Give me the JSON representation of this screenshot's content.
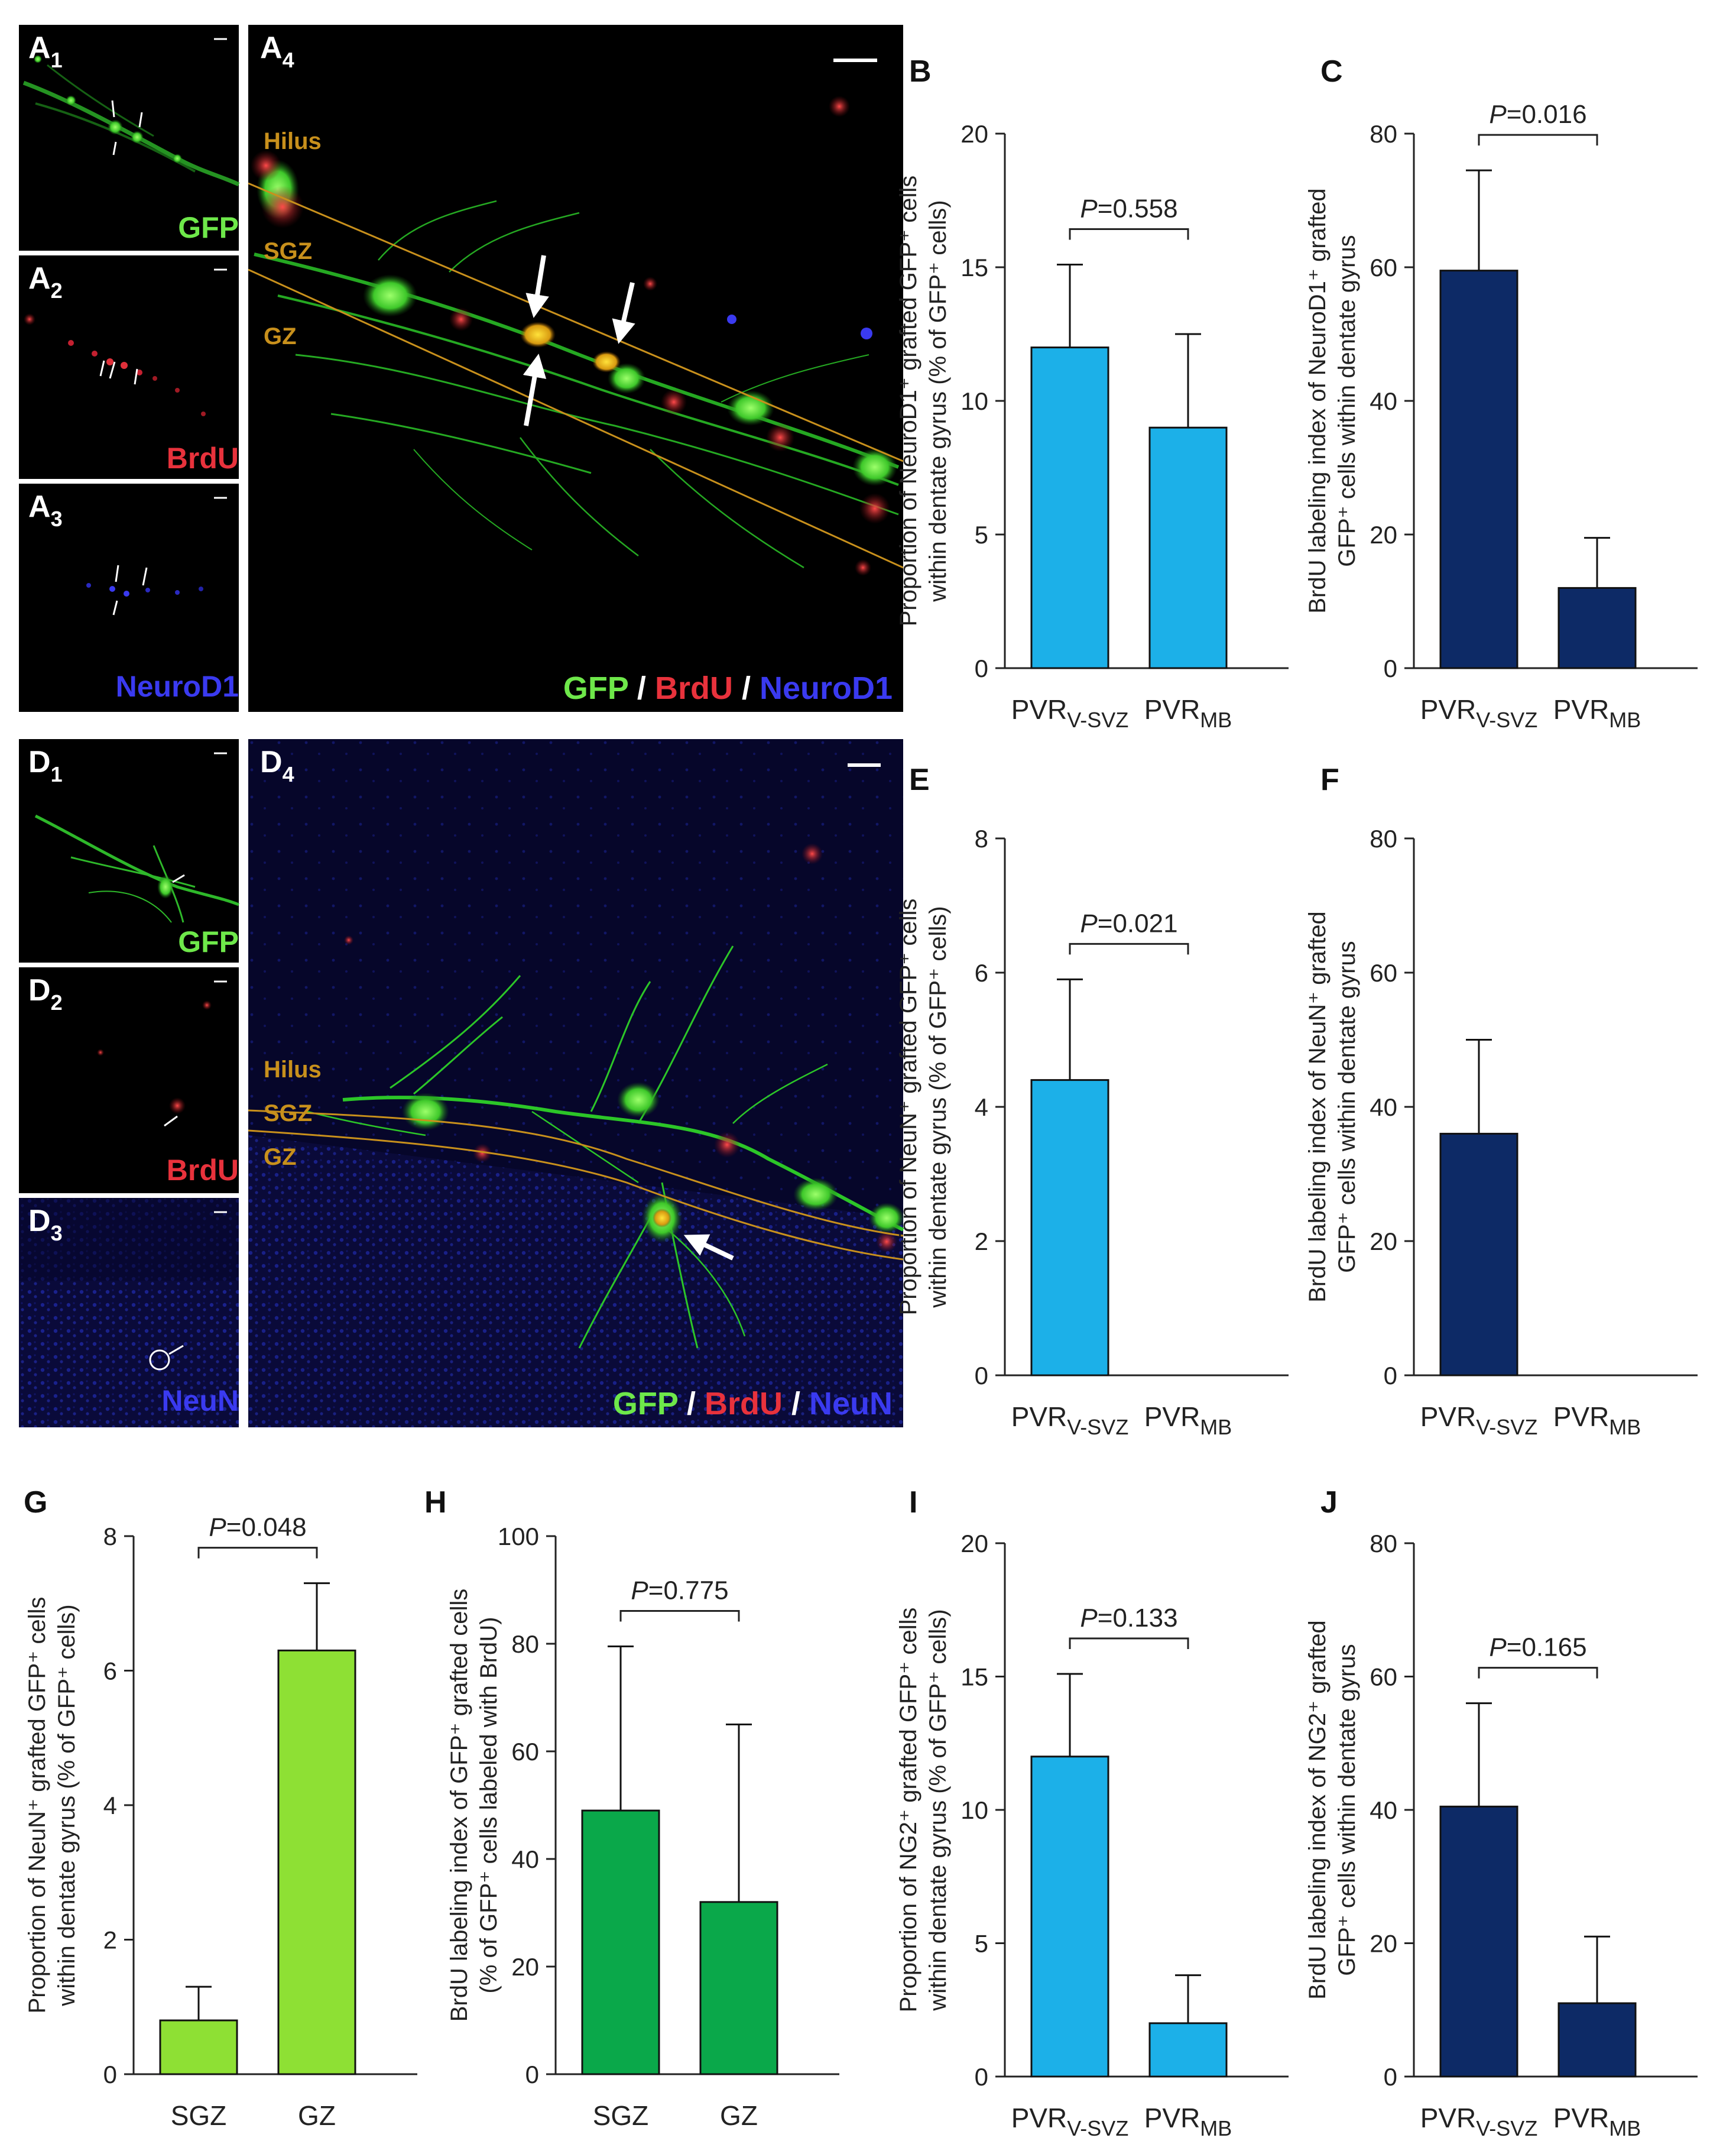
{
  "colors": {
    "light_blue": "#1cb0e8",
    "navy": "#0d2a66",
    "light_green": "#8ee034",
    "green": "#0aa84a",
    "gfp": "#6ee84a",
    "brdu": "#e8323c",
    "marker_blue": "#3a3af0",
    "zone_orange": "#c8901c"
  },
  "micrographs": {
    "top": {
      "small": [
        {
          "panel": "A",
          "sub": "1",
          "stain": "GFP",
          "stain_color": "#6ee84a"
        },
        {
          "panel": "A",
          "sub": "2",
          "stain": "BrdU",
          "stain_color": "#e8323c"
        },
        {
          "panel": "A",
          "sub": "3",
          "stain": "NeuroD1",
          "stain_color": "#3a3af0"
        }
      ],
      "large": {
        "panel": "A",
        "sub": "4",
        "zones": [
          "Hilus",
          "SGZ",
          "GZ"
        ],
        "merge": [
          "GFP",
          "/",
          "BrdU",
          "/",
          "NeuroD1"
        ]
      }
    },
    "bottom": {
      "small": [
        {
          "panel": "D",
          "sub": "1",
          "stain": "GFP",
          "stain_color": "#6ee84a"
        },
        {
          "panel": "D",
          "sub": "2",
          "stain": "BrdU",
          "stain_color": "#e8323c"
        },
        {
          "panel": "D",
          "sub": "3",
          "stain": "NeuN",
          "stain_color": "#3a3af0"
        }
      ],
      "large": {
        "panel": "D",
        "sub": "4",
        "zones": [
          "Hilus",
          "SGZ",
          "GZ"
        ],
        "merge": [
          "GFP",
          "/",
          "BrdU",
          "/",
          "NeuN"
        ]
      }
    }
  },
  "chart_data": [
    {
      "panel": "B",
      "type": "bar",
      "categories": [
        {
          "main": "PVR",
          "sub": "V-SVZ"
        },
        {
          "main": "PVR",
          "sub": "MB"
        }
      ],
      "values": [
        12.0,
        9.0
      ],
      "errors": [
        3.1,
        3.5
      ],
      "ylim": [
        0,
        20
      ],
      "yticks": [
        0,
        5,
        10,
        15,
        20
      ],
      "ylabel": [
        "Proportion of NeuroD1⁺ grafted GFP⁺ cells",
        "within dentate gyrus (% of GFP⁺ cells)"
      ],
      "pvalue": "=0.558",
      "color": "#1cb0e8"
    },
    {
      "panel": "C",
      "type": "bar",
      "categories": [
        {
          "main": "PVR",
          "sub": "V-SVZ"
        },
        {
          "main": "PVR",
          "sub": "MB"
        }
      ],
      "values": [
        59.5,
        12.0
      ],
      "errors": [
        15.0,
        7.5
      ],
      "ylim": [
        0,
        80
      ],
      "yticks": [
        0,
        20,
        40,
        60,
        80
      ],
      "ylabel": [
        "BrdU labeling index of NeuroD1⁺ grafted",
        "GFP⁺ cells within dentate gyrus"
      ],
      "pvalue": "=0.016",
      "color": "#0d2a66"
    },
    {
      "panel": "E",
      "type": "bar",
      "categories": [
        {
          "main": "PVR",
          "sub": "V-SVZ"
        },
        {
          "main": "PVR",
          "sub": "MB"
        }
      ],
      "values": [
        4.4,
        0
      ],
      "errors": [
        1.5,
        0
      ],
      "ylim": [
        0,
        8
      ],
      "yticks": [
        0,
        2,
        4,
        6,
        8
      ],
      "ylabel": [
        "Proportion of NeuN⁺ grafted GFP⁺ cells",
        "within dentate gyrus (% of GFP⁺ cells)"
      ],
      "pvalue": "=0.021",
      "color": "#1cb0e8"
    },
    {
      "panel": "F",
      "type": "bar",
      "categories": [
        {
          "main": "PVR",
          "sub": "V-SVZ"
        },
        {
          "main": "PVR",
          "sub": "MB"
        }
      ],
      "values": [
        36.0,
        0
      ],
      "errors": [
        14.0,
        0
      ],
      "ylim": [
        0,
        80
      ],
      "yticks": [
        0,
        20,
        40,
        60,
        80
      ],
      "ylabel": [
        "BrdU labeling index of NeuN⁺ grafted",
        "GFP⁺ cells within dentate gyrus"
      ],
      "pvalue": "",
      "color": "#0d2a66"
    },
    {
      "panel": "G",
      "type": "bar",
      "categories": [
        {
          "main": "SGZ",
          "sub": ""
        },
        {
          "main": "GZ",
          "sub": ""
        }
      ],
      "values": [
        0.8,
        6.3
      ],
      "errors": [
        0.5,
        1.0
      ],
      "ylim": [
        0,
        8
      ],
      "yticks": [
        0,
        2,
        4,
        6,
        8
      ],
      "ylabel": [
        "Proportion of NeuN⁺ grafted GFP⁺ cells",
        "within dentate gyrus (% of GFP⁺ cells)"
      ],
      "pvalue": "=0.048",
      "color": "#8ee034"
    },
    {
      "panel": "H",
      "type": "bar",
      "categories": [
        {
          "main": "SGZ",
          "sub": ""
        },
        {
          "main": "GZ",
          "sub": ""
        }
      ],
      "values": [
        49.0,
        32.0
      ],
      "errors": [
        30.5,
        33.0
      ],
      "ylim": [
        0,
        100
      ],
      "yticks": [
        0,
        20,
        40,
        60,
        80,
        100
      ],
      "ylabel": [
        "BrdU labeling index of GFP⁺ grafted cells",
        "(% of GFP⁺ cells labeled with BrdU)"
      ],
      "pvalue": "=0.775",
      "color": "#0aa84a"
    },
    {
      "panel": "I",
      "type": "bar",
      "categories": [
        {
          "main": "PVR",
          "sub": "V-SVZ"
        },
        {
          "main": "PVR",
          "sub": "MB"
        }
      ],
      "values": [
        12.0,
        2.0
      ],
      "errors": [
        3.1,
        1.8
      ],
      "ylim": [
        0,
        20
      ],
      "yticks": [
        0,
        5,
        10,
        15,
        20
      ],
      "ylabel": [
        "Proportion of NG2⁺ grafted GFP⁺ cells",
        "within dentate gyrus (% of GFP⁺ cells)"
      ],
      "pvalue": "=0.133",
      "color": "#1cb0e8"
    },
    {
      "panel": "J",
      "type": "bar",
      "categories": [
        {
          "main": "PVR",
          "sub": "V-SVZ"
        },
        {
          "main": "PVR",
          "sub": "MB"
        }
      ],
      "values": [
        40.5,
        11.0
      ],
      "errors": [
        15.5,
        10.0
      ],
      "ylim": [
        0,
        80
      ],
      "yticks": [
        0,
        20,
        40,
        60,
        80
      ],
      "ylabel": [
        "BrdU labeling index of NG2⁺ grafted",
        "GFP⁺ cells within dentate gyrus"
      ],
      "pvalue": "=0.165",
      "color": "#0d2a66"
    }
  ]
}
